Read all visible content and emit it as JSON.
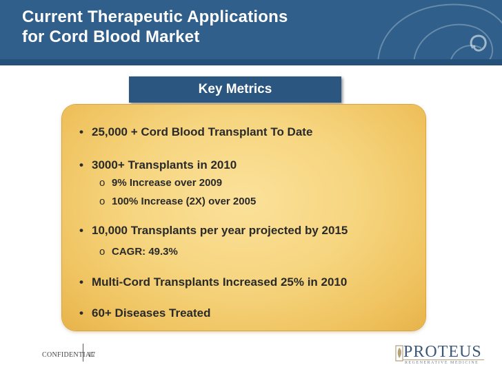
{
  "slide": {
    "title_line1": "Current Therapeutic Applications",
    "title_line2": "for Cord Blood Market",
    "section_label": "Key Metrics",
    "bullets": [
      {
        "text": "25,000 + Cord Blood Transplant To Date",
        "subs": []
      },
      {
        "text": "3000+  Transplants in 2010",
        "subs": [
          "9% Increase over 2009",
          "100% Increase (2X) over 2005"
        ]
      },
      {
        "text": "10,000 Transplants  per  year projected by 2015",
        "subs": [
          "CAGR: 49.3%"
        ]
      },
      {
        "text": "Multi-Cord Transplants Increased 25% in 2010",
        "subs": []
      },
      {
        "text": "60+ Diseases Treated",
        "subs": []
      }
    ],
    "bullet_glyph": "•",
    "sub_glyph": "o"
  },
  "footer": {
    "confidential": "CONFIDENTIAL",
    "page_number": "17"
  },
  "logo": {
    "name": "PROTEUS",
    "tagline": "REGENERATIVE MEDICINE"
  },
  "colors": {
    "header": "#2f5f8a",
    "panel": "#f6d57f",
    "metrics_tab": "#2b5680"
  }
}
